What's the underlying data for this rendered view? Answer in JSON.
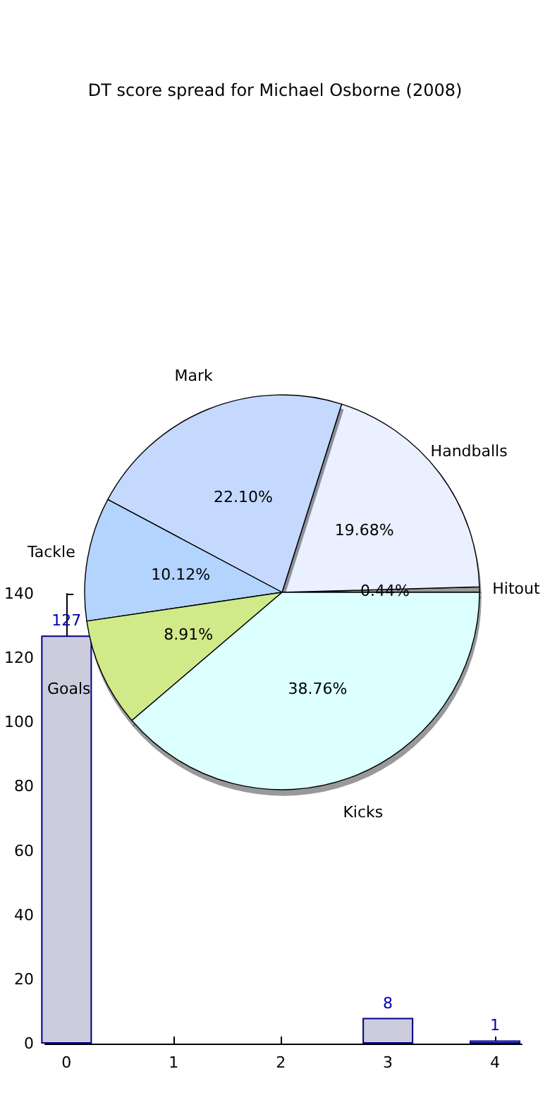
{
  "chart_data": [
    {
      "type": "pie",
      "title": "DT score spread for Michael Osborne (2008)",
      "categories": [
        "Hitout",
        "Handballs",
        "Mark",
        "Tackle",
        "Goals",
        "Kicks"
      ],
      "values": [
        0.44,
        19.68,
        22.1,
        10.12,
        8.91,
        38.76
      ],
      "value_labels": [
        "0.44%",
        "19.68%",
        "22.10%",
        "10.12%",
        "8.91%",
        "38.76%"
      ],
      "colors": [
        "#ffffff",
        "#eaf0ff",
        "#c5d9ff",
        "#b3d4ff",
        "#d0ea8a",
        "#dcffff"
      ],
      "legend": false
    },
    {
      "type": "bar",
      "x": [
        0,
        1,
        2,
        3,
        4
      ],
      "values": [
        127,
        null,
        null,
        8,
        1
      ],
      "value_labels": [
        "127",
        null,
        null,
        "8",
        "1"
      ],
      "color": "#ccccdd",
      "xlim": [
        -0.2,
        4.25
      ],
      "xticks": [
        0,
        1,
        2,
        3,
        4
      ],
      "ylim": [
        0,
        140
      ],
      "yticks": [
        0,
        20,
        40,
        60,
        80,
        100,
        120,
        140
      ],
      "grid": false,
      "legend": false
    }
  ]
}
